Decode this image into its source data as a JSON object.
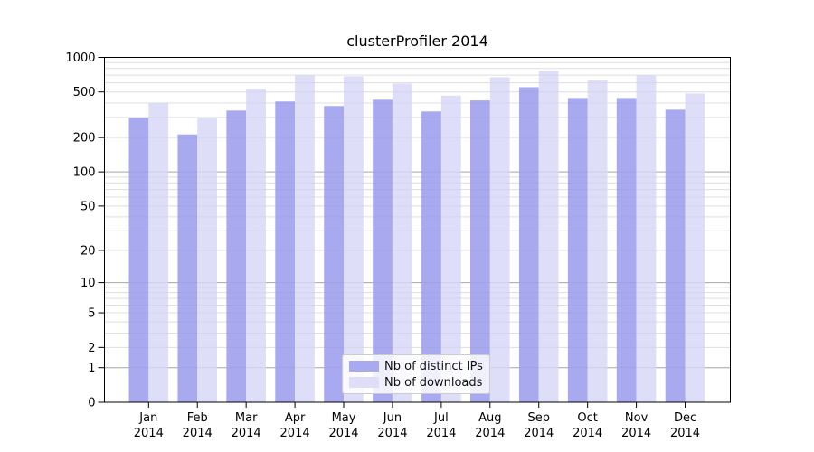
{
  "chart_data": {
    "type": "bar",
    "title": "clusterProfiler 2014",
    "categories": [
      "Jan 2014",
      "Feb 2014",
      "Mar 2014",
      "Apr 2014",
      "May 2014",
      "Jun 2014",
      "Jul 2014",
      "Aug 2014",
      "Sep 2014",
      "Oct 2014",
      "Nov 2014",
      "Dec 2014"
    ],
    "month_labels": [
      "Jan",
      "Feb",
      "Mar",
      "Apr",
      "May",
      "Jun",
      "Jul",
      "Aug",
      "Sep",
      "Oct",
      "Nov",
      "Dec"
    ],
    "year_label": "2014",
    "series": [
      {
        "name": "Nb of distinct IPs",
        "color": "#a9a9f0",
        "values": [
          297,
          213,
          344,
          413,
          377,
          428,
          338,
          422,
          550,
          443,
          443,
          350
        ]
      },
      {
        "name": "Nb of downloads",
        "color": "#dedef8",
        "values": [
          400,
          296,
          530,
          698,
          685,
          592,
          465,
          672,
          765,
          632,
          698,
          485
        ]
      }
    ],
    "xlabel": "",
    "ylabel": "",
    "yscale": "log1p",
    "ylim": [
      0,
      1000
    ],
    "y_tick_values": [
      0,
      1,
      2,
      5,
      10,
      20,
      50,
      100,
      200,
      500,
      1000
    ],
    "y_tick_labels": [
      "0",
      "1",
      "2",
      "5",
      "10",
      "20",
      "50",
      "100",
      "200",
      "500",
      "1000"
    ],
    "grid": {
      "orientation": "horizontal",
      "major_color": "#b0b0b0",
      "minor_color": "#e9e9e9"
    },
    "legend_position": "lower center",
    "axis_color": "#000000",
    "tick_label_color": "#000000"
  }
}
